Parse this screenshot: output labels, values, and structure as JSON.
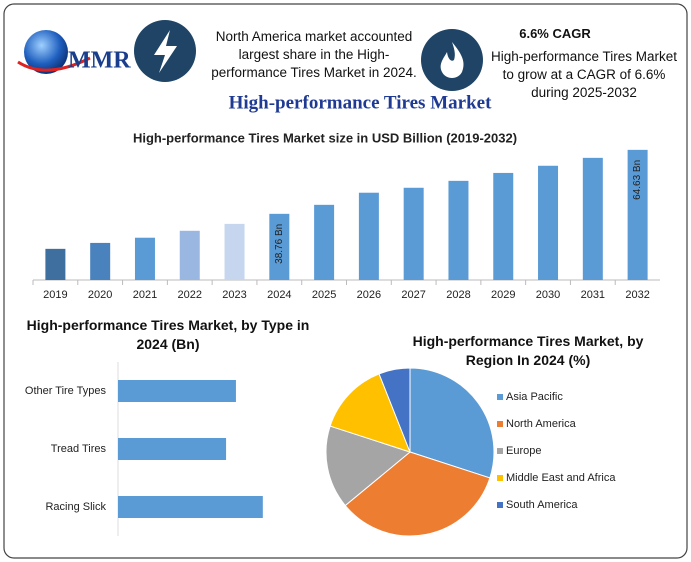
{
  "header": {
    "logo": "MMR",
    "info": "North America market accounted largest share in the High-performance Tires Market in 2024.",
    "cagr_title": "6.6% CAGR",
    "cagr_text": "High-performance Tires Market to grow at a CAGR of 6.6% during 2025-2032",
    "title": "High-performance Tires Market"
  },
  "chart_data": [
    {
      "type": "bar",
      "title": "High-performance Tires Market size in USD Billion (2019-2032)",
      "categories": [
        "2019",
        "2020",
        "2021",
        "2022",
        "2023",
        "2024",
        "2025",
        "2026",
        "2027",
        "2028",
        "2029",
        "2030",
        "2031",
        "2032"
      ],
      "values": [
        24.6,
        27.0,
        29.1,
        31.9,
        34.7,
        38.76,
        42.4,
        47.3,
        49.3,
        52.1,
        55.3,
        58.2,
        61.4,
        64.63
      ],
      "value_labels": [
        null,
        null,
        null,
        null,
        null,
        "38.76 Bn",
        null,
        null,
        null,
        null,
        null,
        null,
        null,
        "64.63 Bn"
      ],
      "colors": [
        "#3e6f9e",
        "#4a82bd",
        "#5b9bd5",
        "#9ab7e2",
        "#c6d6ee",
        "#5b9bd5",
        "#5b9bd5",
        "#5b9bd5",
        "#5b9bd5",
        "#5b9bd5",
        "#5b9bd5",
        "#5b9bd5",
        "#5b9bd5",
        "#5b9bd5"
      ],
      "ylim": [
        12,
        67
      ]
    },
    {
      "type": "hbar",
      "title": "High-performance Tires Market, by Type in 2024 (Bn)",
      "categories": [
        "Other Tire Types",
        "Tread Tires",
        "Racing Slick"
      ],
      "values": [
        21.5,
        19.7,
        26.4
      ],
      "color": "#5b9bd5",
      "xlim": [
        0,
        35
      ]
    },
    {
      "type": "pie",
      "title": "High-performance Tires Market, by Region In 2024 (%)",
      "categories": [
        "Asia Pacific",
        "North America",
        "Europe",
        "Middle East and Africa",
        "South America"
      ],
      "values": [
        30,
        34,
        16,
        14,
        6
      ],
      "colors": [
        "#5b9bd5",
        "#ed7d31",
        "#a5a5a5",
        "#ffc000",
        "#4472c4"
      ],
      "legend": "right"
    }
  ]
}
